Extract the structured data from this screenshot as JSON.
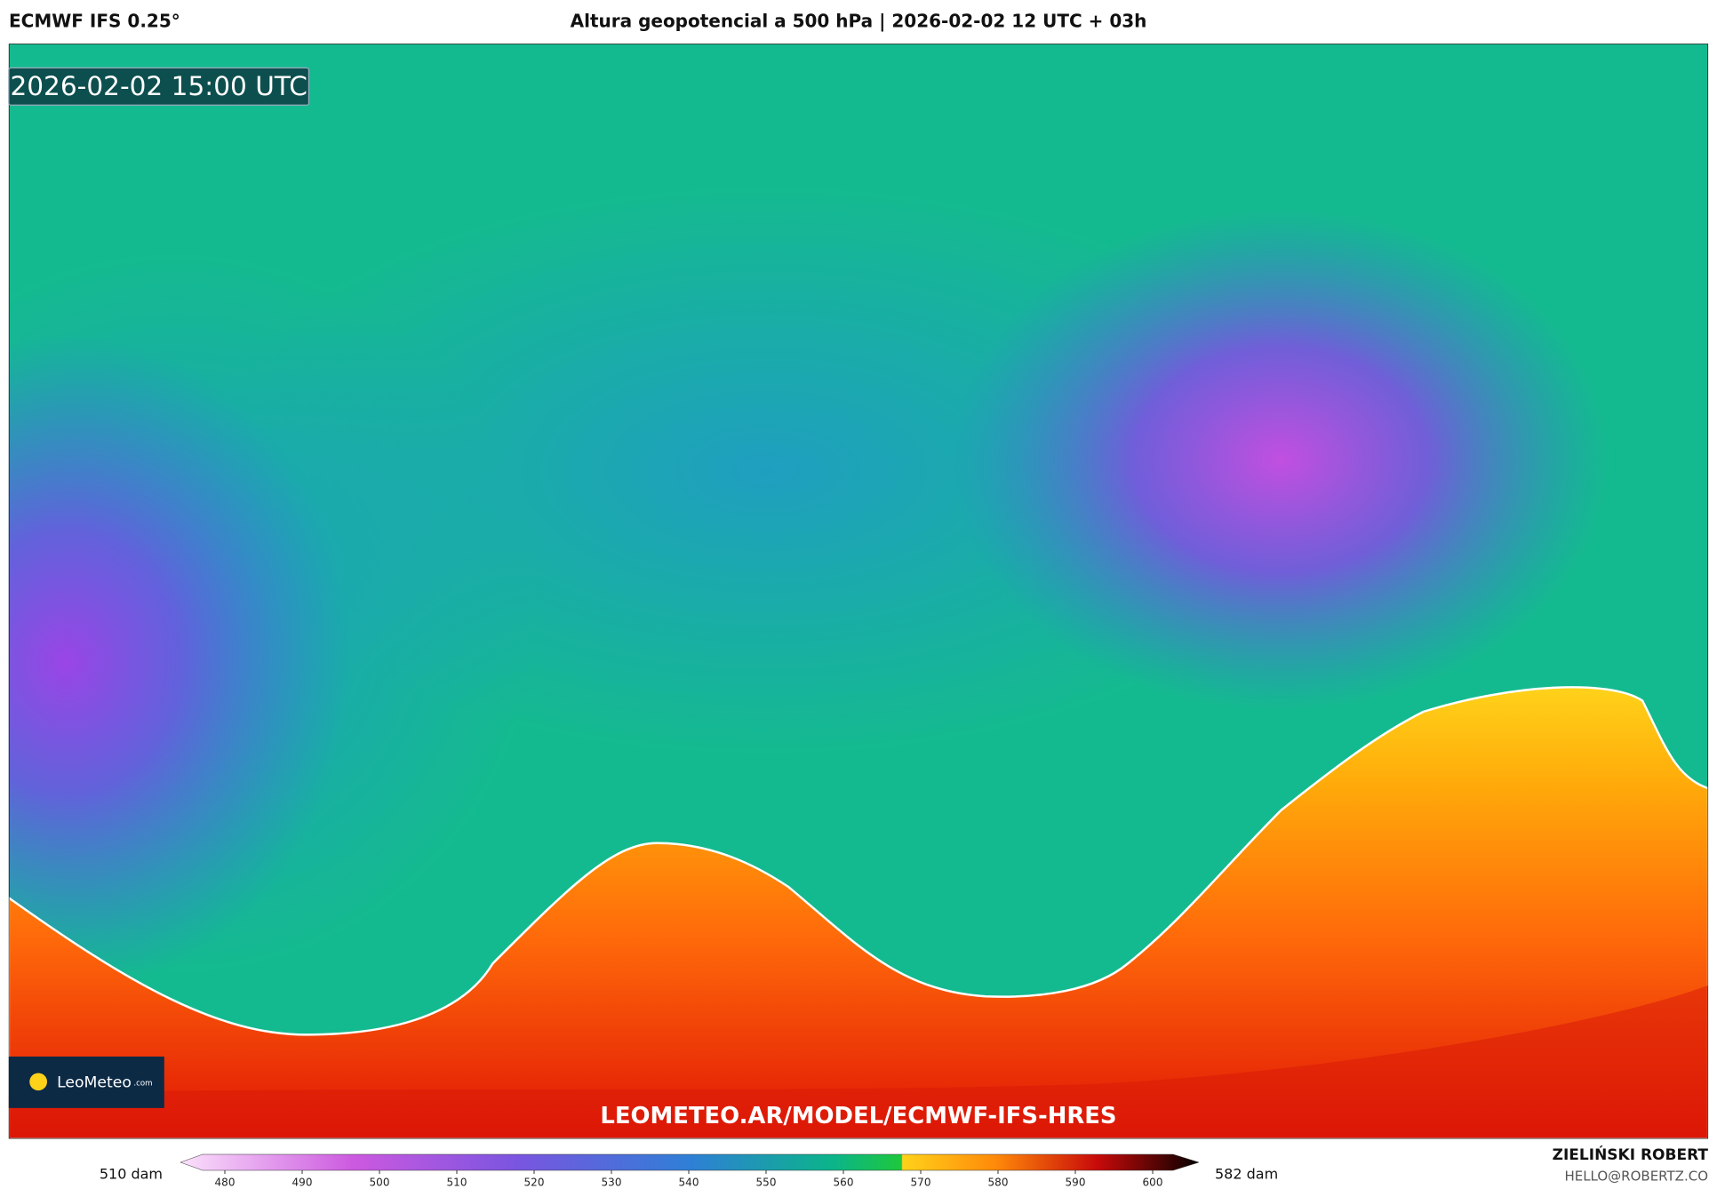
{
  "header": {
    "model": "ECMWF IFS 0.25°",
    "title": "Altura geopotencial a 500 hPa | 2026-02-02 12 UTC + 03h"
  },
  "map": {
    "valid_time": "2026-02-02 15:00 UTC",
    "watermark": "LEOMETEO.AR/MODEL/ECMWF-IFS-HRES",
    "logo": {
      "name": "LeoMeteo",
      "suffix": ".com"
    }
  },
  "colorbar": {
    "min_label": "510 dam",
    "max_label": "582 dam",
    "ticks": [
      480,
      490,
      500,
      510,
      520,
      530,
      540,
      550,
      560,
      570,
      580,
      590,
      600
    ]
  },
  "footer": {
    "author": "ZIELIŃSKI ROBERT",
    "contact": "HELLO@ROBERTZ.CO"
  }
}
